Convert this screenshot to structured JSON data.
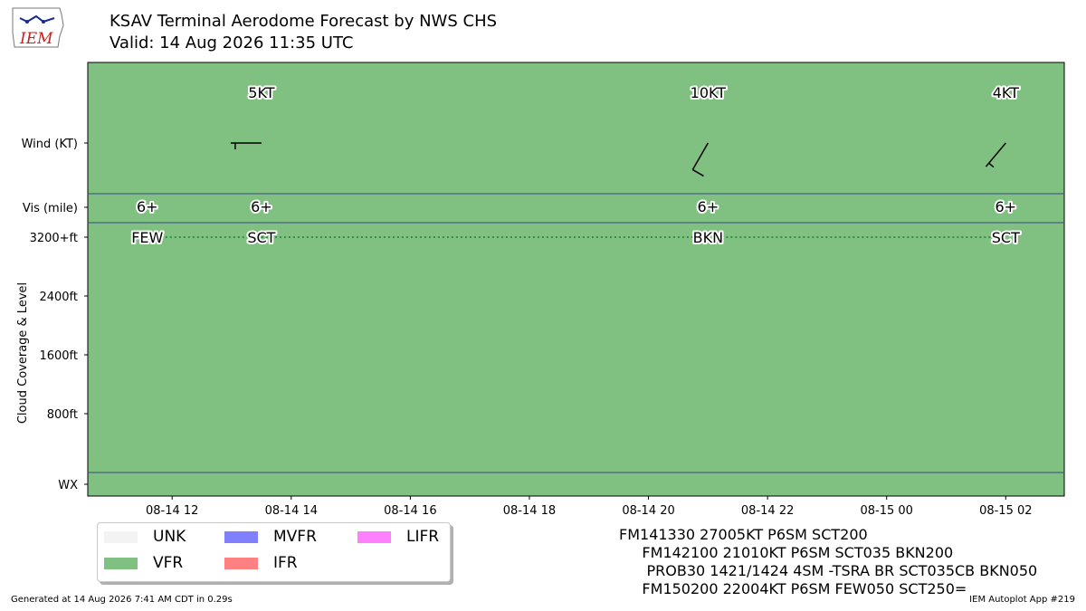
{
  "header": {
    "logo_text": "IEM",
    "title": "KSAV Terminal Aerodome Forecast by NWS CHS",
    "subtitle": "Valid: 14 Aug 2026 11:35 UTC"
  },
  "chart_data": {
    "type": "scatter",
    "x_ticks": [
      "08-14 12",
      "08-14 14",
      "08-14 16",
      "08-14 18",
      "08-14 20",
      "08-14 22",
      "08-15 00",
      "08-15 02"
    ],
    "x_range": [
      "08-14 10:35",
      "08-15 02:59"
    ],
    "row_labels": {
      "wind": "Wind (KT)",
      "vis": "Vis (mile)",
      "wx": "WX"
    },
    "y_label": "Cloud Coverage & Level",
    "y_ticks": [
      "3200+ft",
      "2400ft",
      "1600ft",
      "800ft"
    ],
    "y_tick_values": [
      3200,
      2400,
      1600,
      800
    ],
    "y_range": [
      0,
      3200
    ],
    "background_category": "VFR",
    "periods": [
      {
        "time": "08-14 11:35",
        "visibility": "6+",
        "cloud": "FEW",
        "cloud_level": 3200
      },
      {
        "time": "08-14 13:30",
        "wind_dir": 270,
        "wind_speed": 5,
        "wind_label": "5KT",
        "visibility": "6+",
        "cloud": "SCT",
        "cloud_level": 3200
      },
      {
        "time": "08-14 21:00",
        "wind_dir": 210,
        "wind_speed": 10,
        "wind_label": "10KT",
        "visibility": "6+",
        "cloud": "BKN",
        "cloud_level": 3200
      },
      {
        "time": "08-15 02:00",
        "wind_dir": 220,
        "wind_speed": 4,
        "wind_label": "4KT",
        "visibility": "6+",
        "cloud": "SCT",
        "cloud_level": 3200
      }
    ],
    "legend": [
      {
        "label": "UNK",
        "color": "#f3f3f3"
      },
      {
        "label": "MVFR",
        "color": "#8080ff"
      },
      {
        "label": "LIFR",
        "color": "#ff80ff"
      },
      {
        "label": "VFR",
        "color": "#80c080"
      },
      {
        "label": "IFR",
        "color": "#ff8080"
      }
    ]
  },
  "taf_text": [
    "FM141330 27005KT P6SM SCT200",
    "     FM142100 21010KT P6SM SCT035 BKN200",
    "      PROB30 1421/1424 4SM -TSRA BR SCT035CB BKN050",
    "     FM150200 22004KT P6SM FEW050 SCT250="
  ],
  "footer": {
    "left": "Generated at 14 Aug 2026 7:41 AM CDT in 0.29s",
    "right": "IEM Autoplot App #219"
  }
}
